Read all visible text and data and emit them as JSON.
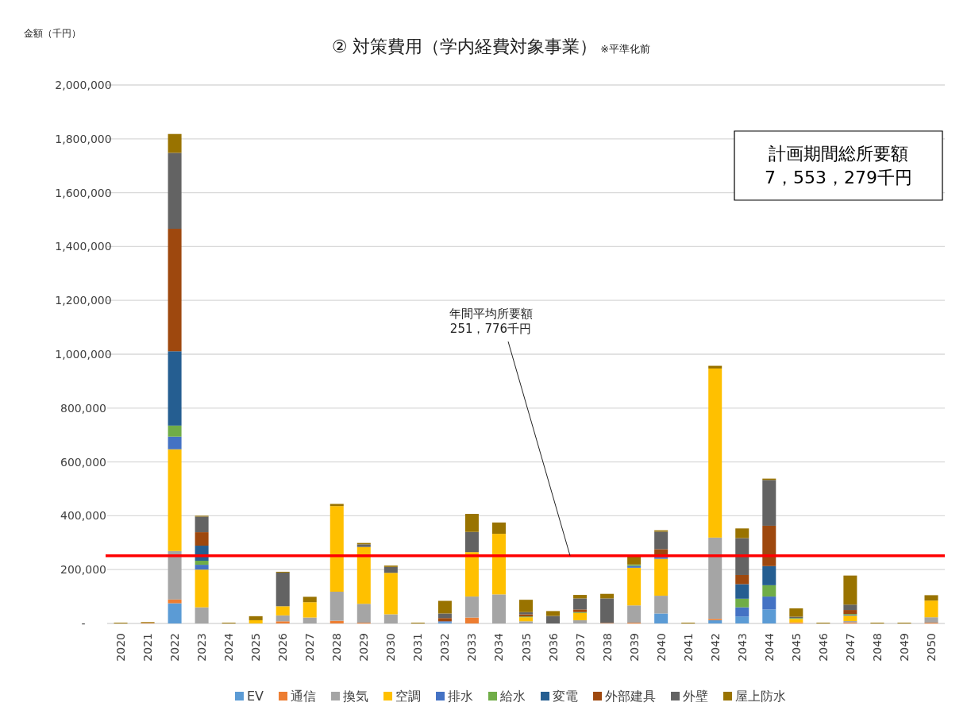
{
  "chart_data": {
    "type": "bar",
    "stacked": true,
    "title": "② 対策費用（学内経費対象事業）",
    "subtitle": "※平準化前",
    "ylabel": "金額（千円）",
    "categories": [
      "2020",
      "2021",
      "2022",
      "2023",
      "2024",
      "2025",
      "2026",
      "2027",
      "2028",
      "2029",
      "2030",
      "2031",
      "2032",
      "2033",
      "2034",
      "2035",
      "2036",
      "2037",
      "2038",
      "2039",
      "2040",
      "2041",
      "2042",
      "2043",
      "2044",
      "2045",
      "2046",
      "2047",
      "2048",
      "2049",
      "2050"
    ],
    "series": [
      {
        "name": "EV",
        "color": "#5b9bd5",
        "values": [
          0,
          0,
          75000,
          0,
          0,
          0,
          0,
          0,
          0,
          0,
          0,
          0,
          5000,
          0,
          0,
          0,
          0,
          0,
          0,
          0,
          37000,
          0,
          12000,
          26000,
          52000,
          0,
          0,
          0,
          0,
          0,
          0
        ]
      },
      {
        "name": "通信",
        "color": "#ed7d31",
        "values": [
          0,
          2000,
          14000,
          0,
          0,
          0,
          8000,
          0,
          10000,
          3000,
          0,
          0,
          0,
          22000,
          0,
          0,
          0,
          0,
          2000,
          3000,
          0,
          0,
          5000,
          0,
          0,
          4000,
          0,
          4000,
          0,
          0,
          3000
        ]
      },
      {
        "name": "換気",
        "color": "#a5a5a5",
        "values": [
          0,
          0,
          180000,
          60000,
          0,
          null,
          22000,
          22000,
          108000,
          70000,
          34000,
          0,
          0,
          78000,
          108000,
          8000,
          0,
          12000,
          0,
          64000,
          66000,
          0,
          302000,
          0,
          0,
          0,
          0,
          5000,
          0,
          0,
          20000
        ]
      },
      {
        "name": "空調",
        "color": "#ffc000",
        "values": [
          0,
          0,
          378000,
          140000,
          0,
          12000,
          34000,
          57000,
          318000,
          211000,
          154000,
          0,
          0,
          165000,
          225000,
          15000,
          0,
          27000,
          0,
          140000,
          137000,
          0,
          628000,
          0,
          0,
          13000,
          0,
          20000,
          0,
          0,
          62000
        ]
      },
      {
        "name": "排水",
        "color": "#4472c4",
        "values": [
          0,
          0,
          47000,
          18000,
          0,
          0,
          0,
          0,
          0,
          0,
          0,
          0,
          3000,
          0,
          0,
          0,
          0,
          0,
          0,
          7000,
          7000,
          0,
          0,
          34000,
          48000,
          0,
          0,
          3000,
          0,
          0,
          0
        ]
      },
      {
        "name": "給水",
        "color": "#70ad47",
        "values": [
          0,
          0,
          41000,
          15000,
          0,
          0,
          0,
          0,
          0,
          0,
          0,
          0,
          0,
          0,
          0,
          3000,
          0,
          3000,
          0,
          5000,
          null,
          0,
          0,
          32000,
          42000,
          3000,
          0,
          3000,
          0,
          0,
          0
        ]
      },
      {
        "name": "変電",
        "color": "#255e91",
        "values": [
          0,
          0,
          276000,
          56000,
          0,
          0,
          0,
          0,
          0,
          0,
          0,
          0,
          0,
          0,
          0,
          0,
          0,
          0,
          0,
          0,
          0,
          0,
          0,
          54000,
          71000,
          0,
          0,
          0,
          0,
          0,
          0
        ]
      },
      {
        "name": "外部建具",
        "color": "#9e480e",
        "values": [
          0,
          0,
          455000,
          50000,
          0,
          0,
          0,
          0,
          0,
          0,
          0,
          0,
          12000,
          0,
          0,
          8000,
          0,
          10000,
          0,
          0,
          29000,
          0,
          0,
          34000,
          150000,
          0,
          0,
          15000,
          0,
          0,
          0
        ]
      },
      {
        "name": "外壁",
        "color": "#636363",
        "values": [
          0,
          0,
          282000,
          58000,
          0,
          0,
          125000,
          0,
          0,
          10000,
          22000,
          0,
          17000,
          75000,
          0,
          8000,
          28000,
          41000,
          91000,
          0,
          65000,
          0,
          0,
          137000,
          170000,
          5000,
          0,
          20000,
          0,
          0,
          0
        ]
      },
      {
        "name": "屋上防水",
        "color": "#997300",
        "values": [
          3000,
          3000,
          70000,
          3000,
          3000,
          15000,
          3000,
          20000,
          8000,
          5000,
          5000,
          3000,
          47000,
          67000,
          42000,
          46000,
          18000,
          13000,
          17000,
          29000,
          5000,
          3000,
          10000,
          36000,
          5000,
          31000,
          3000,
          108000,
          3000,
          3000,
          20000
        ]
      }
    ],
    "ylim": [
      0,
      2000000
    ],
    "yticks": [
      {
        "value": 0,
        "label": "-"
      },
      {
        "value": 200000,
        "label": "200,000"
      },
      {
        "value": 400000,
        "label": "400,000"
      },
      {
        "value": 600000,
        "label": "600,000"
      },
      {
        "value": 800000,
        "label": "800,000"
      },
      {
        "value": 1000000,
        "label": "1,000,000"
      },
      {
        "value": 1200000,
        "label": "1,200,000"
      },
      {
        "value": 1400000,
        "label": "1,400,000"
      },
      {
        "value": 1600000,
        "label": "1,600,000"
      },
      {
        "value": 1800000,
        "label": "1,800,000"
      },
      {
        "value": 2000000,
        "label": "2,000,000"
      }
    ],
    "grid": "y",
    "legend": "bottom",
    "ref_lines": [
      {
        "axis": "y",
        "value": 251776,
        "label": "年間平均所要額\n251，776千円",
        "color": "#ff0000"
      }
    ],
    "annotations": [
      "計画期間総所要額\n7，553，279千円"
    ]
  }
}
